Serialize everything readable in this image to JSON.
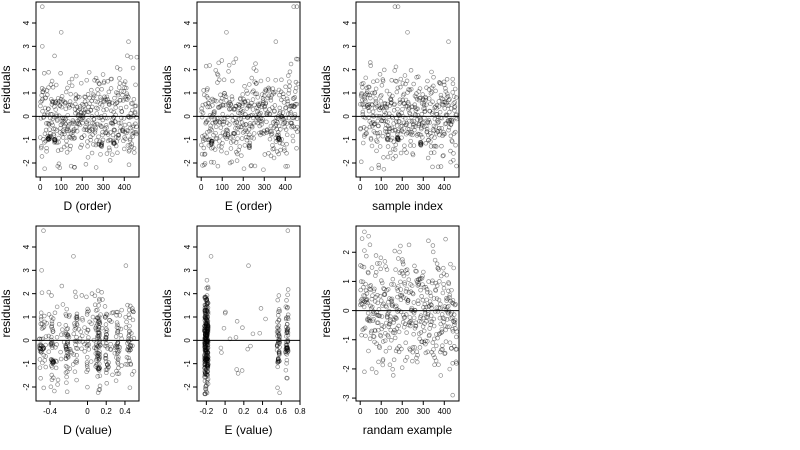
{
  "chart_data": [
    {
      "type": "scatter",
      "xlabel": "D (order)",
      "ylabel": "residuals",
      "xlim": [
        -20,
        470
      ],
      "ylim": [
        -2.6,
        4.9
      ],
      "xticks": [
        0,
        100,
        200,
        300,
        400
      ],
      "yticks": [
        -2,
        -1,
        0,
        1,
        2,
        3,
        4
      ],
      "hline": 0,
      "series": [
        {
          "pattern": "order",
          "seed": 11,
          "n": 460,
          "x_range": [
            0,
            460
          ],
          "clusters": [
            {
              "x": 40,
              "y": -0.95,
              "n": 10
            },
            {
              "x": 70,
              "y": -1.05,
              "n": 8
            },
            {
              "x": 290,
              "y": -1.2,
              "n": 6
            },
            {
              "x": 350,
              "y": -1.1,
              "n": 6
            }
          ],
          "outliers": [
            {
              "x": 10,
              "y": 4.7
            },
            {
              "x": 100,
              "y": 3.6
            },
            {
              "x": 420,
              "y": 3.2
            },
            {
              "x": 10,
              "y": 3.0
            }
          ]
        }
      ]
    },
    {
      "type": "scatter",
      "xlabel": "E (order)",
      "ylabel": "residuals",
      "xlim": [
        -20,
        470
      ],
      "ylim": [
        -2.6,
        4.9
      ],
      "xticks": [
        0,
        100,
        200,
        300,
        400
      ],
      "yticks": [
        -2,
        -1,
        0,
        1,
        2,
        3,
        4
      ],
      "hline": 0,
      "series": [
        {
          "pattern": "order",
          "seed": 23,
          "n": 460,
          "x_range": [
            0,
            460
          ],
          "clusters": [
            {
              "x": 50,
              "y": -1.1,
              "n": 8
            },
            {
              "x": 370,
              "y": -0.95,
              "n": 10
            },
            {
              "x": 230,
              "y": -1.3,
              "n": 5
            }
          ],
          "outliers": [
            {
              "x": 440,
              "y": 4.7
            },
            {
              "x": 455,
              "y": 4.7
            },
            {
              "x": 120,
              "y": 3.6
            },
            {
              "x": 355,
              "y": 3.2
            }
          ]
        }
      ]
    },
    {
      "type": "scatter",
      "xlabel": "sample index",
      "ylabel": "residuals",
      "xlim": [
        -20,
        470
      ],
      "ylim": [
        -2.6,
        4.9
      ],
      "xticks": [
        0,
        100,
        200,
        300,
        400
      ],
      "yticks": [
        -2,
        -1,
        0,
        1,
        2,
        3,
        4
      ],
      "hline": 0,
      "series": [
        {
          "pattern": "order",
          "seed": 37,
          "n": 460,
          "x_range": [
            0,
            460
          ],
          "clusters": [
            {
              "x": 180,
              "y": -0.95,
              "n": 10
            },
            {
              "x": 290,
              "y": -1.15,
              "n": 8
            },
            {
              "x": 130,
              "y": -1.0,
              "n": 5
            }
          ],
          "outliers": [
            {
              "x": 165,
              "y": 4.7
            },
            {
              "x": 180,
              "y": 4.7
            },
            {
              "x": 225,
              "y": 3.6
            },
            {
              "x": 420,
              "y": 3.2
            }
          ]
        }
      ]
    },
    {
      "type": "scatter",
      "xlabel": "D (value)",
      "ylabel": "residuals",
      "xlim": [
        -0.55,
        0.55
      ],
      "ylim": [
        -2.6,
        4.9
      ],
      "xticks": [
        -0.4,
        0.0,
        0.2,
        0.4
      ],
      "yticks": [
        -2,
        -1,
        0,
        1,
        2,
        3,
        4
      ],
      "hline": 0,
      "series": [
        {
          "pattern": "value",
          "seed": 53,
          "n": 420,
          "x_range": [
            -0.5,
            0.5
          ],
          "columns": [
            -0.5,
            -0.38,
            -0.22,
            -0.12,
            0.0,
            0.1,
            0.12,
            0.2,
            0.32,
            0.45
          ],
          "clusters": [
            {
              "x": -0.37,
              "y": -0.9,
              "n": 10
            },
            {
              "x": 0.12,
              "y": -1.25,
              "n": 8
            },
            {
              "x": 0.22,
              "y": -1.1,
              "n": 5
            },
            {
              "x": -0.47,
              "y": -0.3,
              "n": 6
            }
          ],
          "outliers": [
            {
              "x": -0.47,
              "y": 4.7
            },
            {
              "x": -0.15,
              "y": 3.6
            },
            {
              "x": 0.41,
              "y": 3.2
            },
            {
              "x": -0.49,
              "y": 3.0
            }
          ]
        }
      ]
    },
    {
      "type": "scatter",
      "xlabel": "E (value)",
      "ylabel": "residuals",
      "xlim": [
        -0.3,
        0.8
      ],
      "ylim": [
        -2.6,
        4.9
      ],
      "xticks": [
        -0.2,
        0.0,
        0.2,
        0.4,
        0.6,
        0.8
      ],
      "yticks": [
        -2,
        -1,
        0,
        1,
        2,
        3,
        4
      ],
      "hline": 0,
      "series": [
        {
          "pattern": "band",
          "seed": 71,
          "n": 430,
          "bands": [
            {
              "x": -0.2,
              "w": 0.04,
              "frac": 0.72
            },
            {
              "x": 0.57,
              "w": 0.03,
              "frac": 0.12
            },
            {
              "x": 0.66,
              "w": 0.03,
              "frac": 0.12
            }
          ],
          "scatter_frac": 0.04,
          "x_range": [
            -0.05,
            0.45
          ],
          "clusters": [
            {
              "x": -0.19,
              "y": -1.1,
              "n": 8
            },
            {
              "x": 0.57,
              "y": -0.9,
              "n": 6
            },
            {
              "x": 0.66,
              "y": -0.35,
              "n": 6
            }
          ],
          "outliers": [
            {
              "x": 0.67,
              "y": 4.7
            },
            {
              "x": -0.15,
              "y": 3.6
            },
            {
              "x": 0.25,
              "y": 3.2
            }
          ]
        }
      ]
    },
    {
      "type": "scatter",
      "xlabel": "randam example",
      "ylabel": "residuals",
      "xlim": [
        -20,
        470
      ],
      "ylim": [
        -3.1,
        2.9
      ],
      "xticks": [
        0,
        100,
        200,
        300,
        400
      ],
      "yticks": [
        -3,
        -2,
        -1,
        0,
        1,
        2
      ],
      "hline": 0,
      "series": [
        {
          "pattern": "random",
          "seed": 97,
          "n": 460,
          "x_range": [
            0,
            460
          ],
          "sd": 1.0,
          "clusters": [],
          "outliers": [
            {
              "x": 20,
              "y": 2.7
            },
            {
              "x": 40,
              "y": 2.55
            },
            {
              "x": 440,
              "y": -2.9
            }
          ]
        }
      ]
    }
  ]
}
